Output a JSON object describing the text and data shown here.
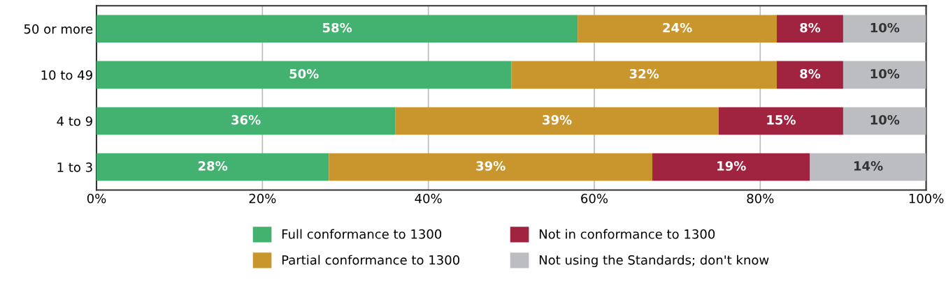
{
  "chart_data": {
    "type": "bar",
    "orientation": "horizontal",
    "stacked": true,
    "categories": [
      "50 or more",
      "10 to 49",
      "4 to 9",
      "1 to 3"
    ],
    "series": [
      {
        "name": "Full conformance to 1300",
        "color": "#43b16f",
        "values": [
          58,
          50,
          36,
          28
        ],
        "value_labels": [
          "58%",
          "50%",
          "36%",
          "28%"
        ]
      },
      {
        "name": "Partial conformance to 1300",
        "color": "#c9962e",
        "values": [
          24,
          32,
          39,
          39
        ],
        "value_labels": [
          "24%",
          "32%",
          "39%",
          "39%"
        ]
      },
      {
        "name": "Not in conformance to 1300",
        "color": "#a0233f",
        "values": [
          8,
          8,
          15,
          19
        ],
        "value_labels": [
          "8%",
          "8%",
          "15%",
          "19%"
        ]
      },
      {
        "name": "Not using the Standards; don't know",
        "color": "#bcbdc0",
        "values": [
          10,
          10,
          10,
          14
        ],
        "value_labels": [
          "10%",
          "10%",
          "10%",
          "14%"
        ]
      }
    ],
    "xlim": [
      0,
      100
    ],
    "xticks": [
      {
        "value": 0,
        "label": "0%"
      },
      {
        "value": 20,
        "label": "20%"
      },
      {
        "value": 40,
        "label": "40%"
      },
      {
        "value": 60,
        "label": "60%"
      },
      {
        "value": 80,
        "label": "80%"
      },
      {
        "value": 100,
        "label": "100%"
      }
    ],
    "grid": "x",
    "legend": "bottom"
  }
}
